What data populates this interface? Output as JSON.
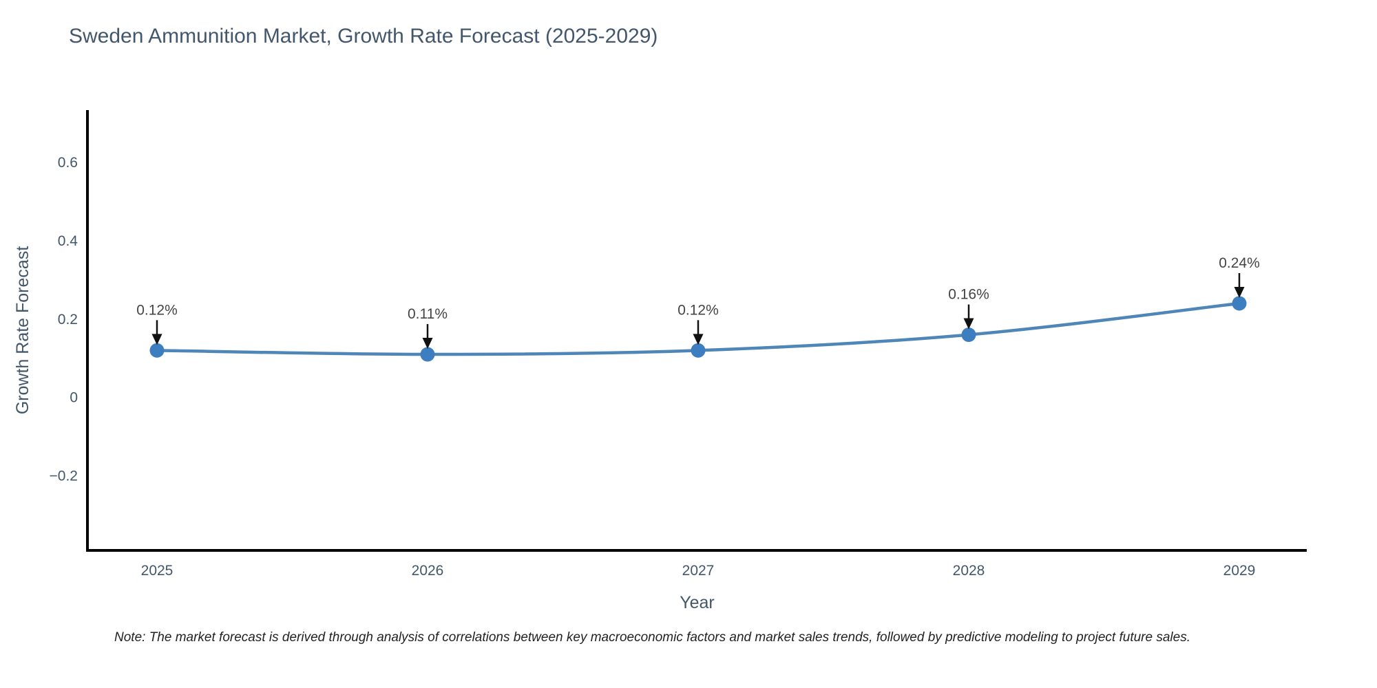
{
  "chart_data": {
    "type": "line",
    "title": "Sweden Ammunition Market, Growth Rate Forecast (2025-2029)",
    "xlabel": "Year",
    "ylabel": "Growth Rate Forecast",
    "x": [
      2025,
      2026,
      2027,
      2028,
      2029
    ],
    "series": [
      {
        "name": "Growth Rate Forecast",
        "values": [
          0.12,
          0.11,
          0.12,
          0.16,
          0.24
        ],
        "point_labels": [
          "0.12%",
          "0.11%",
          "0.12%",
          "0.16%",
          "0.24%"
        ]
      }
    ],
    "yticks": [
      -0.2,
      0,
      0.2,
      0.4,
      0.6
    ],
    "ytick_labels": [
      "−0.2",
      "0",
      "0.2",
      "0.4",
      "0.6"
    ],
    "ylim": [
      -0.39,
      0.733
    ],
    "grid": false,
    "legend": "none",
    "line_shape": "spline",
    "annotation_style": "arrow-down-to-point",
    "note": "Note: The market forecast is derived through analysis of correlations between key macroeconomic factors and market sales trends, followed by predictive modeling to project future sales.",
    "colors": {
      "line": "#4e86b8",
      "marker": "#3c7ebf",
      "axis_line": "#000000",
      "axis_text": "#42576b",
      "annotation_arrow": "#111111",
      "annotation_text": "#444444",
      "note_text": "#222222",
      "background": "#ffffff"
    }
  }
}
